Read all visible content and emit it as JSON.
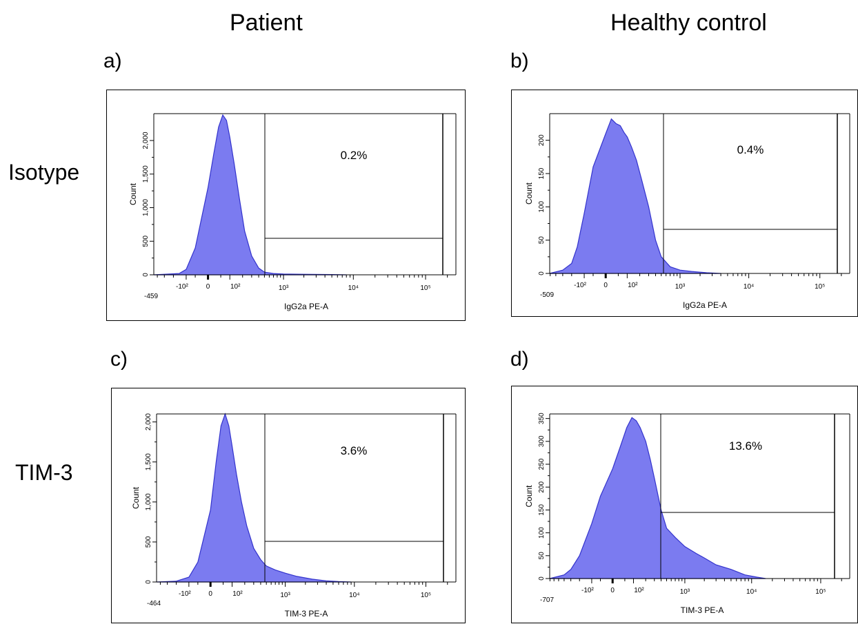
{
  "headers": {
    "columns": [
      "Patient",
      "Healthy control"
    ],
    "rows": [
      "Isotype",
      "TIM-3"
    ]
  },
  "colors": {
    "fill": "#7B7BF0",
    "stroke": "#3333CC",
    "frame": "#000000"
  },
  "chart_data": [
    {
      "type": "area",
      "panel": "a)",
      "xlabel": "IgG2a PE-A",
      "ylabel": "Count",
      "x_scale": "logicle",
      "x_min_label": "-459",
      "x_tick_labels": [
        "-10²",
        "0",
        "10²",
        "10³",
        "10⁴",
        "10⁵"
      ],
      "y_tick_labels": [
        "0",
        "500",
        "1,000",
        "1,500",
        "2,000"
      ],
      "ylim": [
        0,
        2400
      ],
      "gate_label": "0.2%",
      "x": [
        -459,
        -150,
        -100,
        -50,
        0,
        20,
        40,
        60,
        80,
        100,
        130,
        170,
        220,
        300,
        400,
        500,
        700,
        1000,
        2000,
        5000,
        8000
      ],
      "y": [
        0,
        20,
        80,
        400,
        1300,
        1800,
        2200,
        2380,
        2300,
        2050,
        1650,
        1150,
        650,
        280,
        100,
        40,
        20,
        12,
        8,
        4,
        0
      ]
    },
    {
      "type": "area",
      "panel": "b)",
      "xlabel": "IgG2a PE-A",
      "ylabel": "Count",
      "x_scale": "logicle",
      "x_min_label": "-509",
      "x_tick_labels": [
        "-10²",
        "0",
        "10²",
        "10³",
        "10⁴",
        "10⁵"
      ],
      "y_tick_labels": [
        "0",
        "50",
        "100",
        "150",
        "200"
      ],
      "ylim": [
        0,
        240
      ],
      "gate_label": "0.4%",
      "x": [
        -509,
        -300,
        -200,
        -150,
        -100,
        -50,
        0,
        20,
        40,
        60,
        80,
        100,
        130,
        170,
        220,
        300,
        400,
        500,
        700,
        1000,
        1500,
        2500,
        4000
      ],
      "y": [
        0,
        5,
        15,
        40,
        90,
        160,
        210,
        232,
        225,
        222,
        212,
        205,
        190,
        170,
        140,
        100,
        50,
        25,
        10,
        5,
        3,
        1,
        0
      ]
    },
    {
      "type": "area",
      "panel": "c)",
      "xlabel": "TIM-3 PE-A",
      "ylabel": "Count",
      "x_scale": "logicle",
      "x_min_label": "-464",
      "x_tick_labels": [
        "-10²",
        "0",
        "10²",
        "10³",
        "10⁴",
        "10⁵"
      ],
      "y_tick_labels": [
        "0",
        "500",
        "1,000",
        "1,500",
        "2,000"
      ],
      "ylim": [
        0,
        2100
      ],
      "gate_label": "3.6%",
      "x": [
        -464,
        -200,
        -100,
        -50,
        0,
        20,
        40,
        60,
        80,
        100,
        130,
        170,
        220,
        300,
        400,
        500,
        700,
        1000,
        1500,
        2500,
        4000,
        6000,
        9000
      ],
      "y": [
        0,
        10,
        60,
        250,
        900,
        1500,
        1950,
        2100,
        1950,
        1700,
        1350,
        1000,
        700,
        420,
        280,
        200,
        150,
        110,
        70,
        35,
        15,
        5,
        0
      ]
    },
    {
      "type": "area",
      "panel": "d)",
      "xlabel": "TIM-3 PE-A",
      "ylabel": "Count",
      "x_scale": "logicle",
      "x_min_label": "-707",
      "x_tick_labels": [
        "-10²",
        "0",
        "10²",
        "10³",
        "10⁴",
        "10⁵"
      ],
      "y_tick_labels": [
        "0",
        "50",
        "100",
        "150",
        "200",
        "250",
        "300",
        "350"
      ],
      "ylim": [
        0,
        360
      ],
      "gate_label": "13.6%",
      "x": [
        -707,
        -400,
        -300,
        -200,
        -100,
        -50,
        0,
        30,
        60,
        90,
        120,
        150,
        200,
        250,
        300,
        400,
        500,
        700,
        1000,
        1500,
        2000,
        3000,
        5000,
        8000,
        12000,
        16000
      ],
      "y": [
        0,
        8,
        20,
        50,
        120,
        180,
        240,
        290,
        330,
        352,
        345,
        330,
        300,
        260,
        220,
        150,
        110,
        90,
        70,
        55,
        45,
        30,
        20,
        8,
        3,
        0
      ]
    }
  ]
}
